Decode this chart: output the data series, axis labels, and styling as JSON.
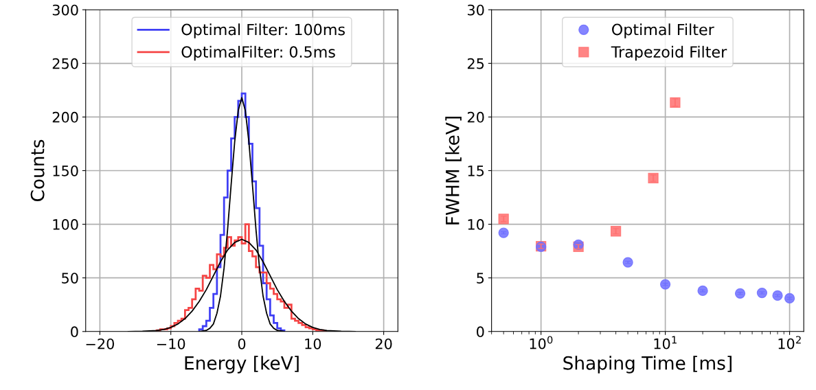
{
  "chart_data": [
    {
      "type": "histogram",
      "xlabel": "Energy [keV]",
      "ylabel": "Counts",
      "xlim": [
        -22,
        22
      ],
      "xticks": [
        {
          "value": -20,
          "label": "−20"
        },
        {
          "value": -10,
          "label": "−10"
        },
        0,
        10,
        20
      ],
      "ylim": [
        0,
        300
      ],
      "yticks": [
        0,
        50,
        100,
        150,
        200,
        250,
        300
      ],
      "grid": true,
      "legend": "top",
      "series": [
        {
          "name": "Optimal Filter: 100ms",
          "color": "#3f3ff5",
          "bins": [
            -6,
            -5.5,
            -5,
            -4.5,
            -4,
            -3.5,
            -3,
            -2.5,
            -2,
            -1.5,
            -1,
            -0.5,
            0,
            0.5,
            1,
            1.5,
            2,
            2.5,
            3,
            3.5,
            4,
            4.5,
            5,
            5.5,
            6
          ],
          "values": [
            2,
            5,
            10,
            22,
            35,
            60,
            90,
            125,
            150,
            180,
            200,
            215,
            222,
            200,
            175,
            140,
            115,
            80,
            45,
            30,
            15,
            8,
            3,
            1
          ]
        },
        {
          "name": "OptimalFilter: 0.5ms",
          "color": "#f54545",
          "bins": [
            -12,
            -11.5,
            -11,
            -10.5,
            -10,
            -9.5,
            -9,
            -8.5,
            -8,
            -7.5,
            -7,
            -6.5,
            -6,
            -5.5,
            -5,
            -4.5,
            -4,
            -3.5,
            -3,
            -2.5,
            -2,
            -1.5,
            -1,
            -0.5,
            0,
            0.5,
            1,
            1.5,
            2,
            2.5,
            3,
            3.5,
            4,
            4.5,
            5,
            5.5,
            6,
            6.5,
            7,
            7.5,
            8,
            8.5,
            9,
            9.5,
            10,
            10.5,
            11,
            11.5,
            12
          ],
          "values": [
            1,
            2,
            2,
            3,
            5,
            8,
            10,
            12,
            20,
            22,
            30,
            40,
            38,
            52,
            50,
            62,
            58,
            72,
            70,
            78,
            88,
            80,
            85,
            88,
            82,
            100,
            75,
            70,
            60,
            55,
            55,
            45,
            40,
            35,
            30,
            28,
            22,
            25,
            12,
            10,
            8,
            6,
            4,
            3,
            2,
            1,
            1,
            0
          ]
        },
        {
          "type": "line",
          "color": "#000000",
          "x": [
            -6,
            -5,
            -4.5,
            -4,
            -3.5,
            -3,
            -2.5,
            -2,
            -1.5,
            -1,
            -0.5,
            0,
            0.5,
            1,
            1.5,
            2,
            2.5,
            3,
            3.5,
            4,
            4.5,
            5,
            6
          ],
          "values": [
            0,
            1,
            3,
            7,
            17,
            33,
            59,
            95,
            137,
            177,
            206,
            218,
            206,
            177,
            137,
            95,
            59,
            33,
            17,
            7,
            3,
            1,
            0
          ]
        },
        {
          "type": "line",
          "color": "#000000",
          "x": [
            -16,
            -14,
            -12,
            -11,
            -10,
            -9,
            -8,
            -7,
            -6,
            -5,
            -4,
            -3,
            -2,
            -1,
            0,
            1,
            2,
            3,
            4,
            5,
            6,
            7,
            8,
            9,
            10,
            11,
            12,
            14,
            16
          ],
          "values": [
            0,
            0.2,
            0.9,
            1.9,
            3.8,
            7,
            12,
            19,
            28,
            39,
            52,
            65,
            76,
            83,
            86,
            83,
            76,
            65,
            52,
            39,
            28,
            19,
            12,
            7,
            3.8,
            1.9,
            0.9,
            0.2,
            0
          ]
        }
      ]
    },
    {
      "type": "scatter",
      "xlabel": "Shaping Time [ms]",
      "ylabel": "FWHM [keV]",
      "log": "x",
      "xlim": [
        0.4,
        130
      ],
      "xticks": [
        {
          "value": 1,
          "label": "10$^{0}$"
        },
        {
          "value": 10,
          "label": "10$^{1}$"
        },
        {
          "value": 100,
          "label": "10$^{2}$"
        }
      ],
      "ylim": [
        0,
        30
      ],
      "yticks": [
        0,
        5,
        10,
        15,
        20,
        25,
        30
      ],
      "grid": true,
      "legend": "top",
      "series": [
        {
          "name": "Optimal Filter",
          "color": "#7070ff",
          "marker": "circle",
          "x": [
            0.5,
            1,
            2,
            5,
            10,
            20,
            40,
            60,
            80,
            100
          ],
          "values": [
            9.2,
            7.9,
            8.1,
            6.45,
            4.4,
            3.8,
            3.55,
            3.6,
            3.35,
            3.1
          ],
          "errors": [
            0.1,
            0.1,
            0.1,
            0.1,
            0.1,
            0.1,
            0.1,
            0.1,
            0.1,
            0.1
          ]
        },
        {
          "name": "Trapezoid Filter",
          "color": "#ff7070",
          "marker": "square",
          "x": [
            0.5,
            1,
            2,
            4,
            8,
            12
          ],
          "values": [
            10.5,
            7.95,
            7.9,
            9.35,
            14.3,
            21.35
          ],
          "errors": [
            0.25,
            0.2,
            0.2,
            0.25,
            0.3,
            0.35
          ]
        }
      ]
    }
  ]
}
